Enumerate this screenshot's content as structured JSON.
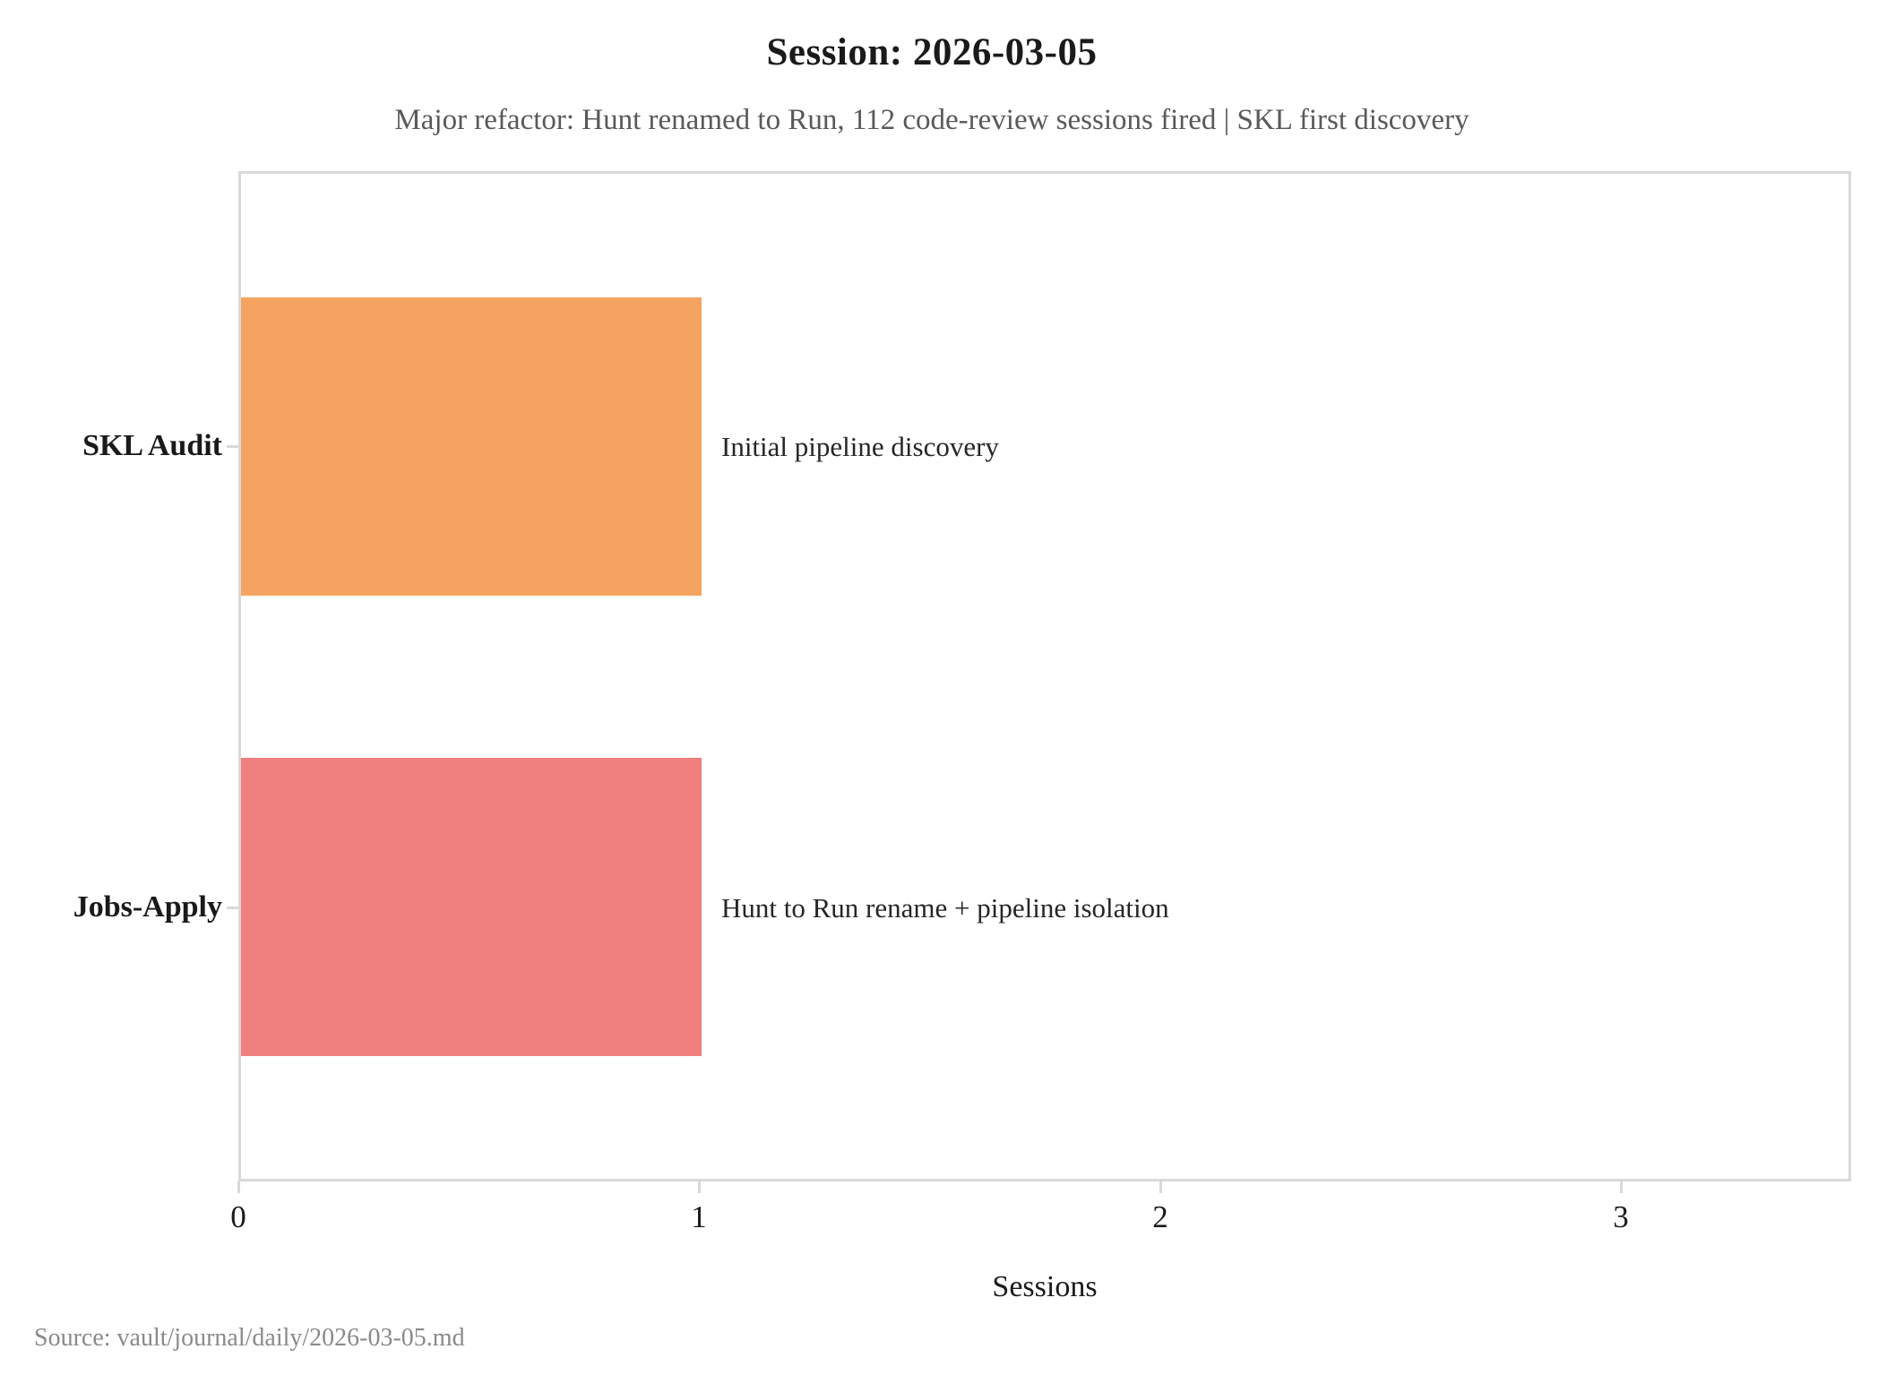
{
  "chart_data": {
    "type": "bar",
    "orientation": "horizontal",
    "title": "Session: 2026-03-05",
    "subtitle": "Major refactor: Hunt renamed to Run, 112 code-review sessions fired | SKL first discovery",
    "categories": [
      "SKL Audit",
      "Jobs-Apply"
    ],
    "values": [
      1,
      1
    ],
    "bar_labels": [
      "Initial pipeline discovery",
      "Hunt to Run rename + pipeline isolation"
    ],
    "bar_colors": [
      "#F4A460",
      "#F08080"
    ],
    "xlabel": "Sessions",
    "xlim": [
      0,
      3.5
    ],
    "xticks": [
      0,
      1,
      2,
      3
    ],
    "grid": false,
    "legend": false,
    "source": "Source: vault/journal/daily/2026-03-05.md"
  }
}
